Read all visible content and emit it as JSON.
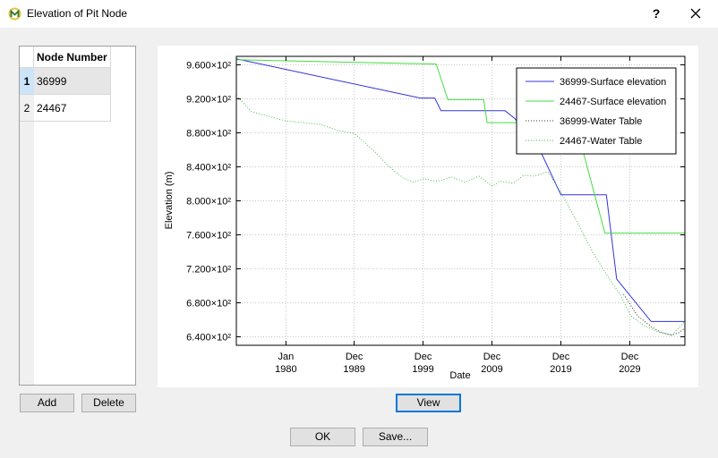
{
  "window": {
    "title": "Elevation of Pit Node",
    "help_label": "?"
  },
  "table": {
    "column_header": "Node Number",
    "rows": [
      {
        "index": "1",
        "value": "36999"
      },
      {
        "index": "2",
        "value": "24467"
      }
    ]
  },
  "buttons": {
    "add": "Add",
    "delete": "Delete",
    "view": "View",
    "ok": "OK",
    "save": "Save..."
  },
  "chart_data": {
    "type": "line",
    "xlabel": "Date",
    "ylabel": "Elevation (m)",
    "x_tick_labels": [
      [
        "Jan",
        "1980"
      ],
      [
        "Dec",
        "1989"
      ],
      [
        "Dec",
        "1999"
      ],
      [
        "Dec",
        "2009"
      ],
      [
        "Dec",
        "2019"
      ],
      [
        "Dec",
        "2029"
      ]
    ],
    "x_tick_years": [
      1980.0,
      1989.9,
      1999.9,
      2009.9,
      2019.9,
      2029.9
    ],
    "xlim": [
      1972.8,
      2037.9
    ],
    "y_tick_labels": [
      "6.400×10²",
      "6.800×10²",
      "7.200×10²",
      "7.600×10²",
      "8.000×10²",
      "8.400×10²",
      "8.800×10²",
      "9.200×10²",
      "9.600×10²"
    ],
    "y_tick_values": [
      640,
      680,
      720,
      760,
      800,
      840,
      880,
      920,
      960
    ],
    "ylim": [
      630,
      970
    ],
    "grid": true,
    "legend_position": "top-right",
    "series": [
      {
        "name": "36999-Surface elevation",
        "color": "#3333dd",
        "style": "solid",
        "x": [
          1972.8,
          1999.5,
          2001.6,
          2002.5,
          2011.8,
          2013.2,
          2016.9,
          2019.9,
          2026.5,
          2028.0,
          2033.0,
          2037.9
        ],
        "y": [
          967,
          921,
          921,
          906,
          906,
          897,
          859,
          807,
          807,
          708,
          658,
          658
        ]
      },
      {
        "name": "24467-Surface elevation",
        "color": "#44dd44",
        "style": "solid",
        "x": [
          1972.8,
          2001.8,
          2003.5,
          2008.7,
          2009.2,
          2013.9,
          2014.6,
          2017.0,
          2022.4,
          2026.3,
          2037.9
        ],
        "y": [
          966,
          961,
          919,
          919,
          892,
          892,
          880,
          880,
          880,
          762,
          762
        ]
      },
      {
        "name": "36999-Water Table",
        "color": "#333333",
        "style": "dotted",
        "x": [
          2029.0,
          2031.0,
          2033.0,
          2034.5,
          2036.0,
          2037.0,
          2037.9
        ],
        "y": [
          690,
          665,
          652,
          645,
          642,
          645,
          650
        ]
      },
      {
        "name": "24467-Water Table",
        "color": "#44bb44",
        "style": "dotted",
        "x": [
          1972.8,
          1975.0,
          1980.0,
          1985.0,
          1987.5,
          1989.5,
          1990.0,
          1993.0,
          1995.0,
          1997.0,
          1998.5,
          2000.0,
          2002.0,
          2004.0,
          2006.0,
          2008.0,
          2010.0,
          2011.0,
          2013.0,
          2014.5,
          2016.0,
          2018.0,
          2020.0,
          2022.0,
          2024.5,
          2027.0,
          2028.5,
          2030.0,
          2032.0,
          2034.0,
          2036.0,
          2037.9
        ],
        "y": [
          924,
          905,
          894,
          890,
          883,
          880,
          879,
          857,
          840,
          827,
          822,
          826,
          823,
          828,
          822,
          829,
          817,
          823,
          821,
          830,
          829,
          834,
          809,
          779,
          740,
          707,
          690,
          665,
          653,
          646,
          642,
          658
        ]
      }
    ]
  }
}
